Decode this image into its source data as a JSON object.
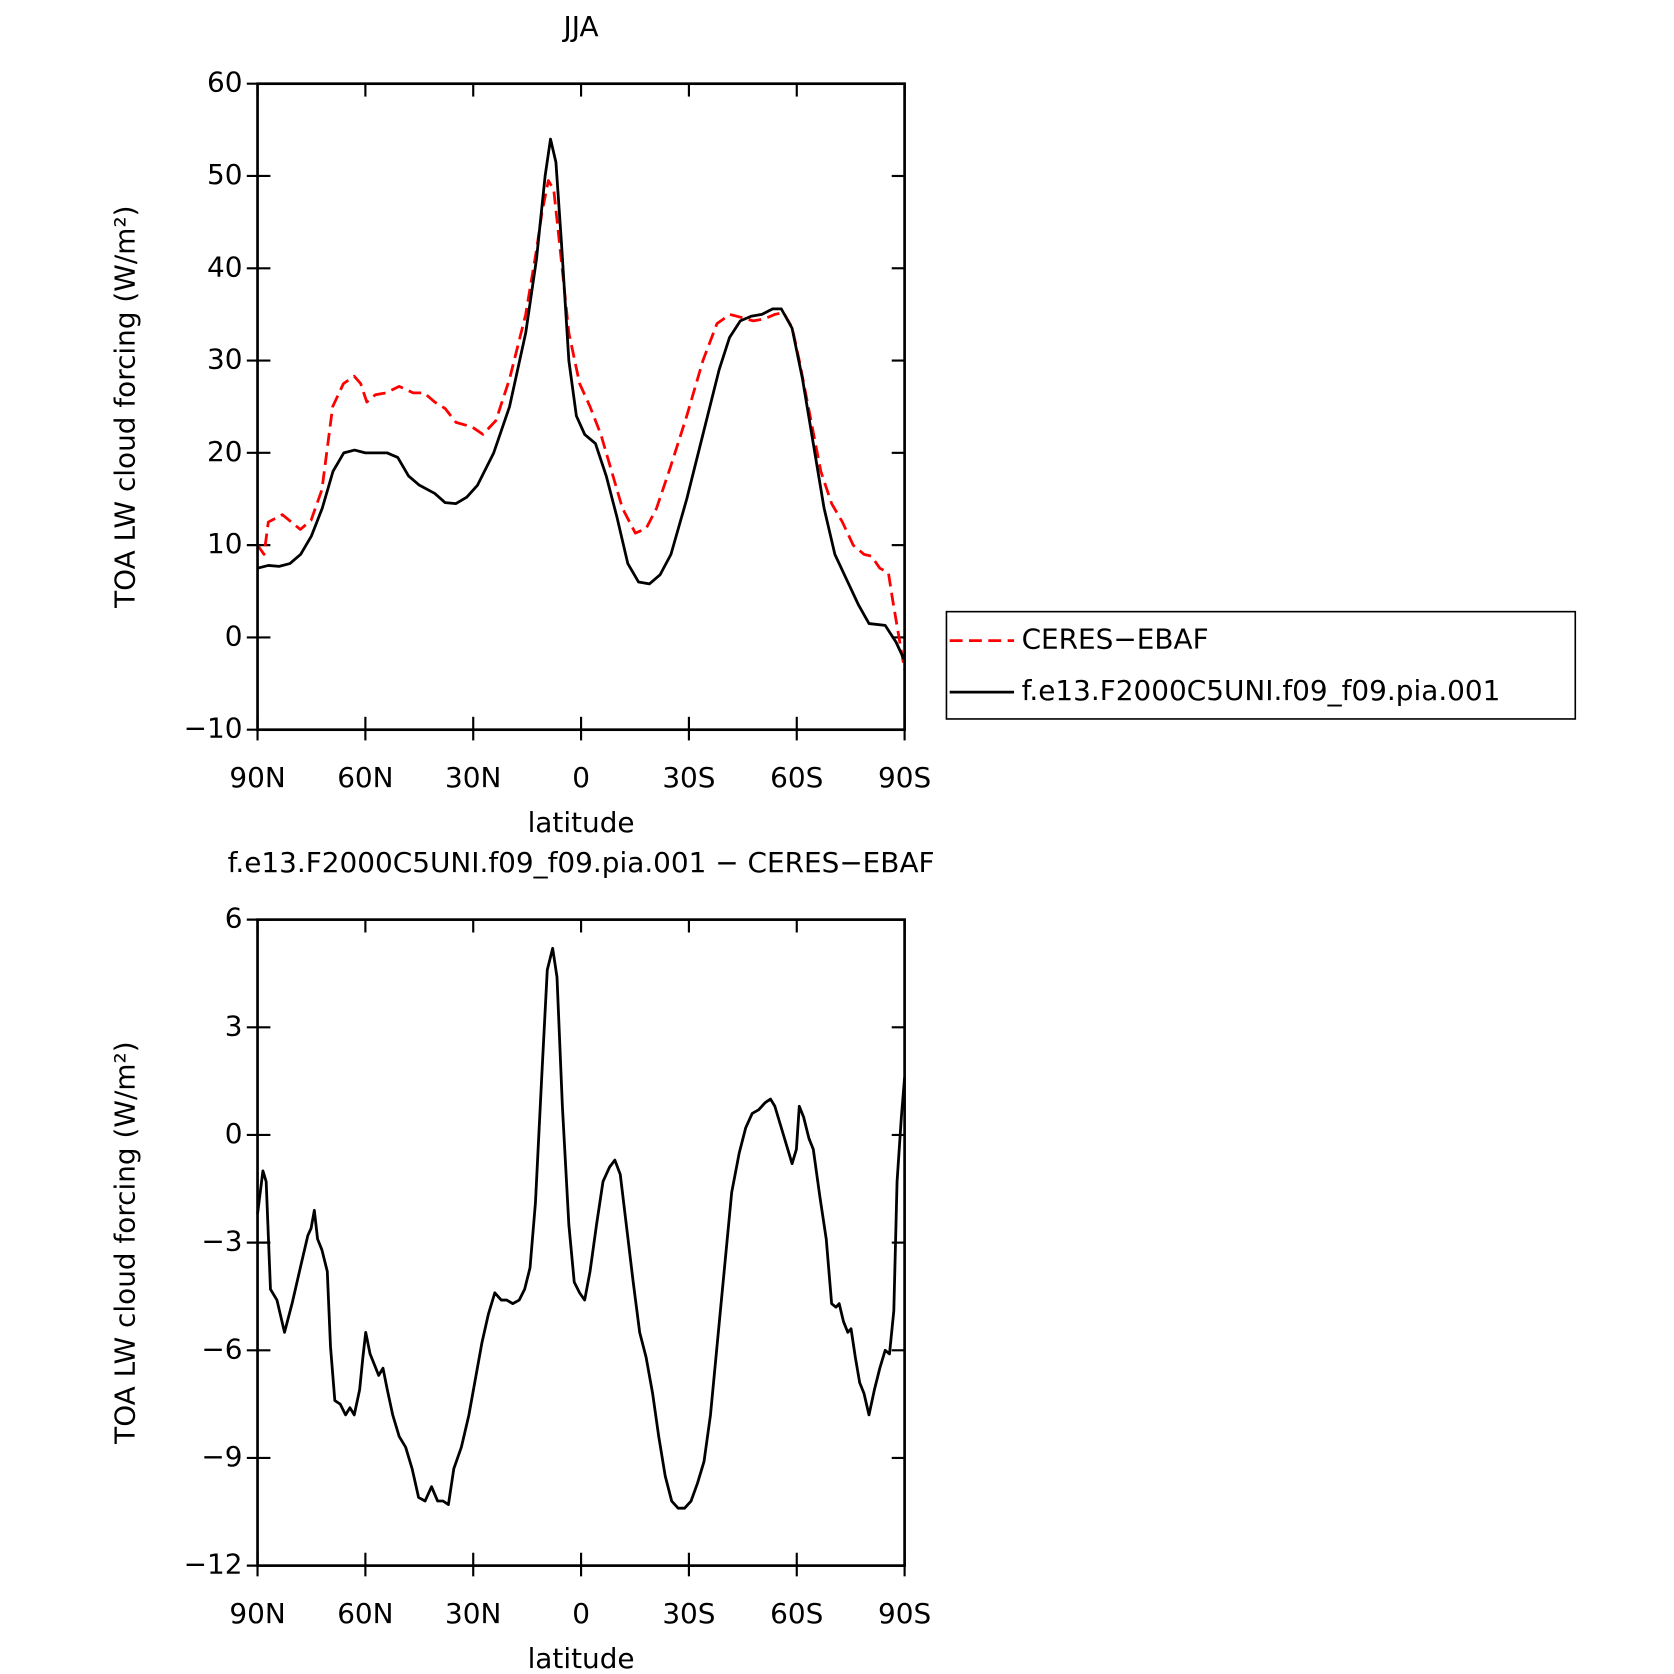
{
  "chart_data": [
    {
      "type": "line",
      "title": "JJA",
      "xlabel": "latitude",
      "ylabel": "TOA LW cloud forcing (W/m²)",
      "xlim": [
        90,
        -90
      ],
      "xticks": [
        {
          "value": 90,
          "label": "90N"
        },
        {
          "value": 60,
          "label": "60N"
        },
        {
          "value": 30,
          "label": "30N"
        },
        0,
        {
          "value": -30,
          "label": "30S"
        },
        {
          "value": -60,
          "label": "60S"
        },
        {
          "value": -90,
          "label": "90S"
        }
      ],
      "ylim": [
        -10,
        60
      ],
      "yticks": [
        {
          "value": -10,
          "label": "−10"
        },
        0,
        10,
        20,
        30,
        40,
        50,
        60
      ],
      "legend": "right",
      "series": [
        {
          "name": "CERES−EBAF",
          "color": "#ff0000",
          "dash": true,
          "x": [
            90,
            88.2,
            87,
            83.1,
            78.1,
            75.1,
            72.1,
            69.1,
            66.1,
            63.1,
            61.3,
            59.6,
            57.2,
            54.2,
            50.6,
            46.7,
            43.7,
            40.7,
            37.8,
            34.8,
            30.3,
            27.3,
            23.7,
            19.9,
            15.4,
            12.4,
            10.9,
            9.1,
            7.6,
            5.8,
            3.4,
            0.4,
            -2.5,
            -5.5,
            -8.5,
            -11.5,
            -15.1,
            -18.1,
            -21,
            -24.9,
            -29.4,
            -33.9,
            -37.8,
            -41.4,
            -44.3,
            -47.9,
            -50.9,
            -53.9,
            -56.3,
            -58.7,
            -60.7,
            -63.7,
            -66.7,
            -69.7,
            -72.7,
            -75.7,
            -78.7,
            -80.8,
            -83.1,
            -85.5,
            -86.7,
            -89.1,
            -90
          ],
          "values": [
            10,
            9,
            12.5,
            13.3,
            11.7,
            12.7,
            16,
            25,
            27.5,
            28.3,
            27.5,
            25.5,
            26.3,
            26.5,
            27.2,
            26.5,
            26.5,
            25.5,
            24.8,
            23.3,
            22.8,
            22,
            23.5,
            28,
            35,
            42,
            46,
            49.5,
            48.5,
            42,
            33,
            27.5,
            25,
            22,
            18,
            14,
            11.3,
            11.8,
            14,
            18.5,
            24,
            30,
            34,
            35,
            34.7,
            34.3,
            34.5,
            35,
            35.2,
            33.6,
            30,
            24,
            18,
            14.5,
            12.5,
            10,
            9,
            8.8,
            7.5,
            7,
            4,
            -1.5,
            -3.5
          ]
        },
        {
          "name": "f.e13.F2000C5UNI.f09_f09.pia.001",
          "color": "#000000",
          "dash": false,
          "x": [
            90,
            87,
            84,
            81,
            78,
            75,
            72,
            69,
            66,
            63,
            60,
            57,
            54,
            51,
            48,
            45,
            40.7,
            37.8,
            34.8,
            31.8,
            28.8,
            24.3,
            19.9,
            15.4,
            12.4,
            10,
            8.5,
            7,
            5.5,
            3.4,
            1.3,
            -1,
            -4,
            -7,
            -10,
            -13,
            -16,
            -19,
            -22,
            -25,
            -29.4,
            -33.9,
            -38.4,
            -41.3,
            -44.3,
            -47.3,
            -50.3,
            -53.3,
            -55.7,
            -58.7,
            -61.6,
            -64.6,
            -67.6,
            -70.6,
            -74.2,
            -77.2,
            -80.1,
            -84.6,
            -87.6,
            -90
          ],
          "values": [
            7.5,
            7.8,
            7.7,
            8,
            9,
            11,
            14,
            18,
            20,
            20.3,
            20,
            20,
            20,
            19.5,
            17.5,
            16.5,
            15.6,
            14.6,
            14.5,
            15.2,
            16.5,
            20,
            25,
            33,
            41,
            50,
            54,
            51.5,
            43,
            30,
            24,
            22,
            21,
            17.5,
            13,
            8,
            6,
            5.8,
            6.8,
            9,
            15,
            22,
            29,
            32.5,
            34.3,
            34.8,
            35,
            35.6,
            35.6,
            33.5,
            28,
            21,
            14,
            9,
            6,
            3.5,
            1.5,
            1.3,
            -0.5,
            -2.5
          ]
        }
      ]
    },
    {
      "type": "line",
      "title": "f.e13.F2000C5UNI.f09_f09.pia.001 − CERES−EBAF",
      "xlabel": "latitude",
      "ylabel": "TOA LW cloud forcing (W/m²)",
      "xlim": [
        90,
        -90
      ],
      "xticks": [
        {
          "value": 90,
          "label": "90N"
        },
        {
          "value": 60,
          "label": "60N"
        },
        {
          "value": 30,
          "label": "30N"
        },
        0,
        {
          "value": -30,
          "label": "30S"
        },
        {
          "value": -60,
          "label": "60S"
        },
        {
          "value": -90,
          "label": "90S"
        }
      ],
      "ylim": [
        -12,
        6
      ],
      "yticks": [
        {
          "value": -12,
          "label": "−12"
        },
        {
          "value": -9,
          "label": "−9"
        },
        {
          "value": -6,
          "label": "−6"
        },
        {
          "value": -3,
          "label": "−3"
        },
        0,
        3,
        6
      ],
      "series": [
        {
          "color": "#000000",
          "dash": false,
          "x": [
            90,
            88.5,
            87.6,
            86.4,
            84.6,
            82.5,
            80.4,
            78.1,
            76,
            75.1,
            74.2,
            73.3,
            72.1,
            70.6,
            69.7,
            68.5,
            67,
            65.5,
            64.3,
            63.1,
            61.6,
            60.7,
            59.9,
            58.7,
            57.5,
            56.3,
            55.1,
            53.9,
            52.4,
            50.6,
            48.8,
            47,
            45.2,
            43.4,
            41.6,
            39.9,
            38.4,
            36.9,
            35.4,
            33.3,
            31.2,
            29.4,
            27.6,
            25.8,
            24,
            22.2,
            20.7,
            19,
            17.2,
            15.7,
            14.2,
            12.7,
            10.9,
            9.4,
            7.9,
            6.7,
            5.2,
            3.4,
            1.9,
            0.4,
            -1,
            -2.5,
            -4.3,
            -6.1,
            -7.9,
            -9.4,
            -10.9,
            -12.7,
            -14.5,
            -16.3,
            -18.1,
            -19.9,
            -21.6,
            -23.4,
            -25.2,
            -27,
            -28.8,
            -30.6,
            -32.4,
            -34.2,
            -36,
            -37.8,
            -39.9,
            -41.9,
            -44,
            -45.8,
            -47.6,
            -49.4,
            -51.2,
            -52.7,
            -53.9,
            -55.7,
            -57.5,
            -58.7,
            -59.9,
            -60.7,
            -61.9,
            -63.4,
            -64.6,
            -66.4,
            -68.2,
            -69.7,
            -70.9,
            -71.8,
            -73,
            -74.2,
            -75.1,
            -76.3,
            -77.5,
            -78.7,
            -80.1,
            -81.6,
            -83.1,
            -84.6,
            -85.8,
            -87,
            -87.9,
            -89.1,
            -90
          ],
          "values": [
            -2.2,
            -1,
            -1.3,
            -4.3,
            -4.6,
            -5.5,
            -4.7,
            -3.7,
            -2.8,
            -2.6,
            -2.1,
            -2.9,
            -3.2,
            -3.8,
            -5.9,
            -7.4,
            -7.5,
            -7.8,
            -7.6,
            -7.8,
            -7.1,
            -6.2,
            -5.5,
            -6.1,
            -6.4,
            -6.7,
            -6.5,
            -7.1,
            -7.8,
            -8.4,
            -8.7,
            -9.3,
            -10.1,
            -10.2,
            -9.8,
            -10.2,
            -10.2,
            -10.3,
            -9.3,
            -8.7,
            -7.8,
            -6.8,
            -5.8,
            -5,
            -4.4,
            -4.6,
            -4.6,
            -4.7,
            -4.6,
            -4.3,
            -3.7,
            -1.9,
            1.7,
            4.6,
            5.2,
            4.4,
            0.8,
            -2.5,
            -4.1,
            -4.4,
            -4.6,
            -3.8,
            -2.5,
            -1.3,
            -0.9,
            -0.7,
            -1.1,
            -2.6,
            -4.1,
            -5.5,
            -6.2,
            -7.2,
            -8.4,
            -9.5,
            -10.2,
            -10.4,
            -10.4,
            -10.2,
            -9.7,
            -9.1,
            -7.8,
            -5.9,
            -3.7,
            -1.6,
            -0.5,
            0.2,
            0.6,
            0.7,
            0.9,
            1,
            0.8,
            0.2,
            -0.4,
            -0.8,
            -0.4,
            0.8,
            0.5,
            -0.1,
            -0.4,
            -1.7,
            -2.9,
            -4.7,
            -4.8,
            -4.7,
            -5.2,
            -5.5,
            -5.4,
            -6.2,
            -6.9,
            -7.2,
            -7.8,
            -7.1,
            -6.5,
            -6,
            -6.1,
            -4.9,
            -1.3,
            0.5,
            1.6
          ]
        }
      ]
    }
  ]
}
